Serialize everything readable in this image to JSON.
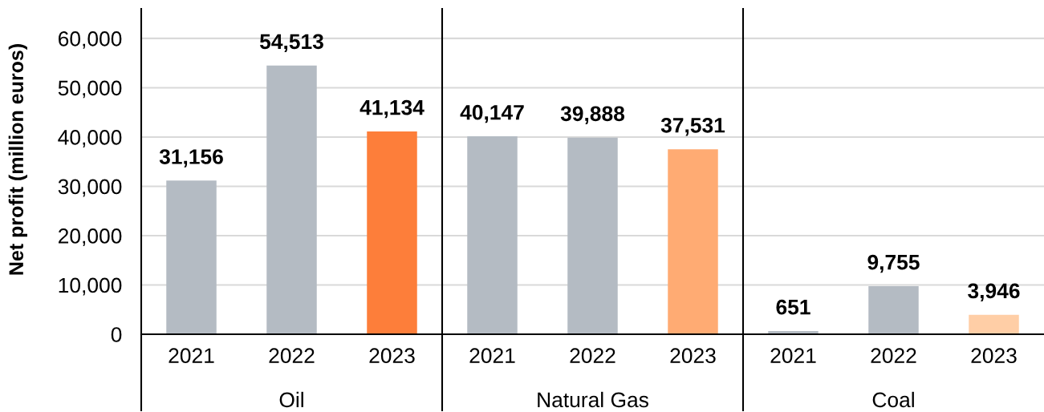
{
  "chart_data": [
    {
      "type": "bar",
      "categories": [
        "2021",
        "2022",
        "2023"
      ],
      "values": [
        31156,
        54513,
        41134
      ],
      "colors": [
        "#b4bbc3",
        "#b4bbc3",
        "#fd7e3a"
      ],
      "value_labels": [
        "31,156",
        "54,513",
        "41,134"
      ],
      "xlabel": "Oil",
      "ylabel": "Net profit (million euros)",
      "ylim": [
        0,
        66000
      ],
      "yticks": [
        0,
        {
          "value": 10000,
          "label": "10,000"
        },
        {
          "value": 20000,
          "label": "20,000"
        },
        {
          "value": 30000,
          "label": "30,000"
        },
        {
          "value": 40000,
          "label": "40,000"
        },
        {
          "value": 50000,
          "label": "50,000"
        },
        {
          "value": 60000,
          "label": "60,000"
        }
      ],
      "grid": "y"
    },
    {
      "type": "bar",
      "categories": [
        "2021",
        "2022",
        "2023"
      ],
      "values": [
        40147,
        39888,
        37531
      ],
      "colors": [
        "#b4bbc3",
        "#b4bbc3",
        "#ffab73"
      ],
      "value_labels": [
        "40,147",
        "39,888",
        "37,531"
      ],
      "xlabel": "Natural Gas",
      "ylim": [
        0,
        66000
      ],
      "yticks": [
        0,
        10000,
        20000,
        30000,
        40000,
        50000,
        60000
      ],
      "grid": "y",
      "tick_labels": "x"
    },
    {
      "type": "bar",
      "categories": [
        "2021",
        "2022",
        "2023"
      ],
      "values": [
        651,
        9755,
        3946
      ],
      "colors": [
        "#b4bbc3",
        "#b4bbc3",
        "#ffcea6"
      ],
      "value_labels": [
        "651",
        "9,755",
        "3,946"
      ],
      "xlabel": "Coal",
      "ylim": [
        0,
        66000
      ],
      "yticks": [
        0,
        10000,
        20000,
        30000,
        40000,
        50000,
        60000
      ],
      "grid": "y",
      "tick_labels": "x"
    }
  ]
}
